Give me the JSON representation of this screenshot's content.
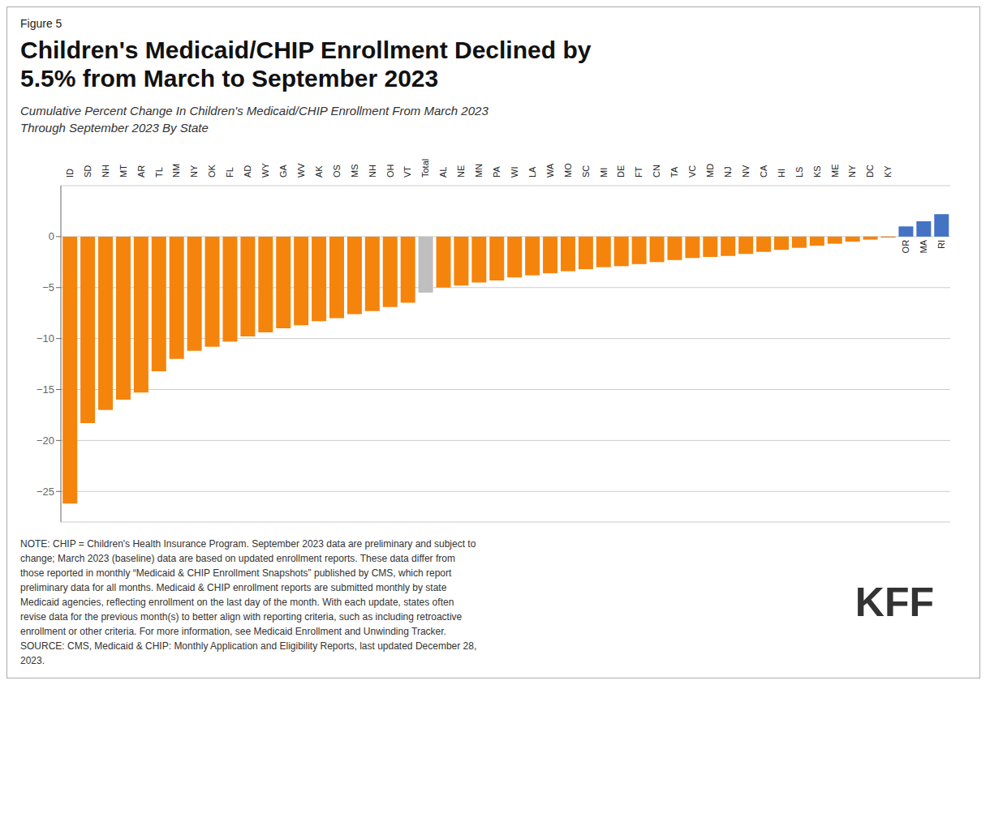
{
  "chart_data": {
    "type": "bar",
    "title": "Children's Medicaid/CHIP Enrollment Declined by\n5.5% from March to September 2023",
    "subtitle": "Cumulative Percent Change In Children's Medicaid/CHIP Enrollment From March 2023\nThrough September 2023 By State",
    "annotations": [
      "Figure 5",
      "NOTE: CHIP = Children's Health Insurance Program. September 2023 data are preliminary and subject to\nchange; March 2023 (baseline) data are based on updated enrollment reports. These data differ from\nthose reported in monthly “Medicaid & CHIP Enrollment Snapshots” published by CMS, which report\npreliminary data for all months. Medicaid & CHIP enrollment reports are submitted monthly by state\nMedicaid agencies, reflecting enrollment on the last day of the month. With each update, states often\nrevise data for the previous month(s) to better align with reporting criteria, such as including retroactive\nenrollment or other criteria. For more information, see Medicaid Enrollment and Unwinding Tracker.\nSOURCE: CMS, Medicaid & CHIP: Monthly Application and Eligibility Reports, last updated December 28,\n2023.",
      "KFF"
    ],
    "categories": [
      "ID",
      "SD",
      "NH",
      "MT",
      "AR",
      "TL",
      "NM",
      "NY",
      "OK",
      "FL",
      "AD",
      "WY",
      "GA",
      "WV",
      "AK",
      "OS",
      "MS",
      "NH",
      "OH",
      "VT",
      "Total",
      "AL",
      "NE",
      "MN",
      "PA",
      "WI",
      "LA",
      "WA",
      "MO",
      "SC",
      "MI",
      "DE",
      "FT",
      "CN",
      "TA",
      "VC",
      "MD",
      "NJ",
      "NV",
      "CA",
      "HI",
      "LS",
      "KS",
      "ME",
      "NY",
      "DC",
      "KY",
      "OR",
      "MA",
      "RI"
    ],
    "values": [
      -26.2,
      -18.3,
      -17.0,
      -16.0,
      -15.3,
      -13.2,
      -12.0,
      -11.2,
      -10.8,
      -10.3,
      -9.8,
      -9.4,
      -9.0,
      -8.7,
      -8.3,
      -8.0,
      -7.6,
      -7.3,
      -6.9,
      -6.5,
      -5.5,
      -5.0,
      -4.8,
      -4.5,
      -4.3,
      -4.0,
      -3.8,
      -3.6,
      -3.4,
      -3.2,
      -3.0,
      -2.9,
      -2.7,
      -2.5,
      -2.3,
      -2.1,
      -2.0,
      -1.9,
      -1.7,
      -1.5,
      -1.3,
      -1.1,
      -0.9,
      -0.7,
      -0.5,
      -0.3,
      -0.1,
      1.0,
      1.5,
      2.2
    ],
    "colors": [
      "#F5840C",
      "#F5840C",
      "#F5840C",
      "#F5840C",
      "#F5840C",
      "#F5840C",
      "#F5840C",
      "#F5840C",
      "#F5840C",
      "#F5840C",
      "#F5840C",
      "#F5840C",
      "#F5840C",
      "#F5840C",
      "#F5840C",
      "#F5840C",
      "#F5840C",
      "#F5840C",
      "#F5840C",
      "#F5840C",
      "#BFBFBF",
      "#F5840C",
      "#F5840C",
      "#F5840C",
      "#F5840C",
      "#F5840C",
      "#F5840C",
      "#F5840C",
      "#F5840C",
      "#F5840C",
      "#F5840C",
      "#F5840C",
      "#F5840C",
      "#F5840C",
      "#F5840C",
      "#F5840C",
      "#F5840C",
      "#F5840C",
      "#F5840C",
      "#F5840C",
      "#F5840C",
      "#F5840C",
      "#F5840C",
      "#F5840C",
      "#F5840C",
      "#F5840C",
      "#F5840C",
      "#4472C4",
      "#4472C4",
      "#4472C4"
    ],
    "ylim": [
      -28,
      5
    ],
    "yticks": [
      0,
      {
        "value": -5,
        "label": "−5"
      },
      {
        "value": -10,
        "label": "−10"
      },
      {
        "value": -15,
        "label": "−15"
      },
      {
        "value": -20,
        "label": "−20"
      },
      {
        "value": -25,
        "label": "−25"
      }
    ],
    "grid": true
  }
}
